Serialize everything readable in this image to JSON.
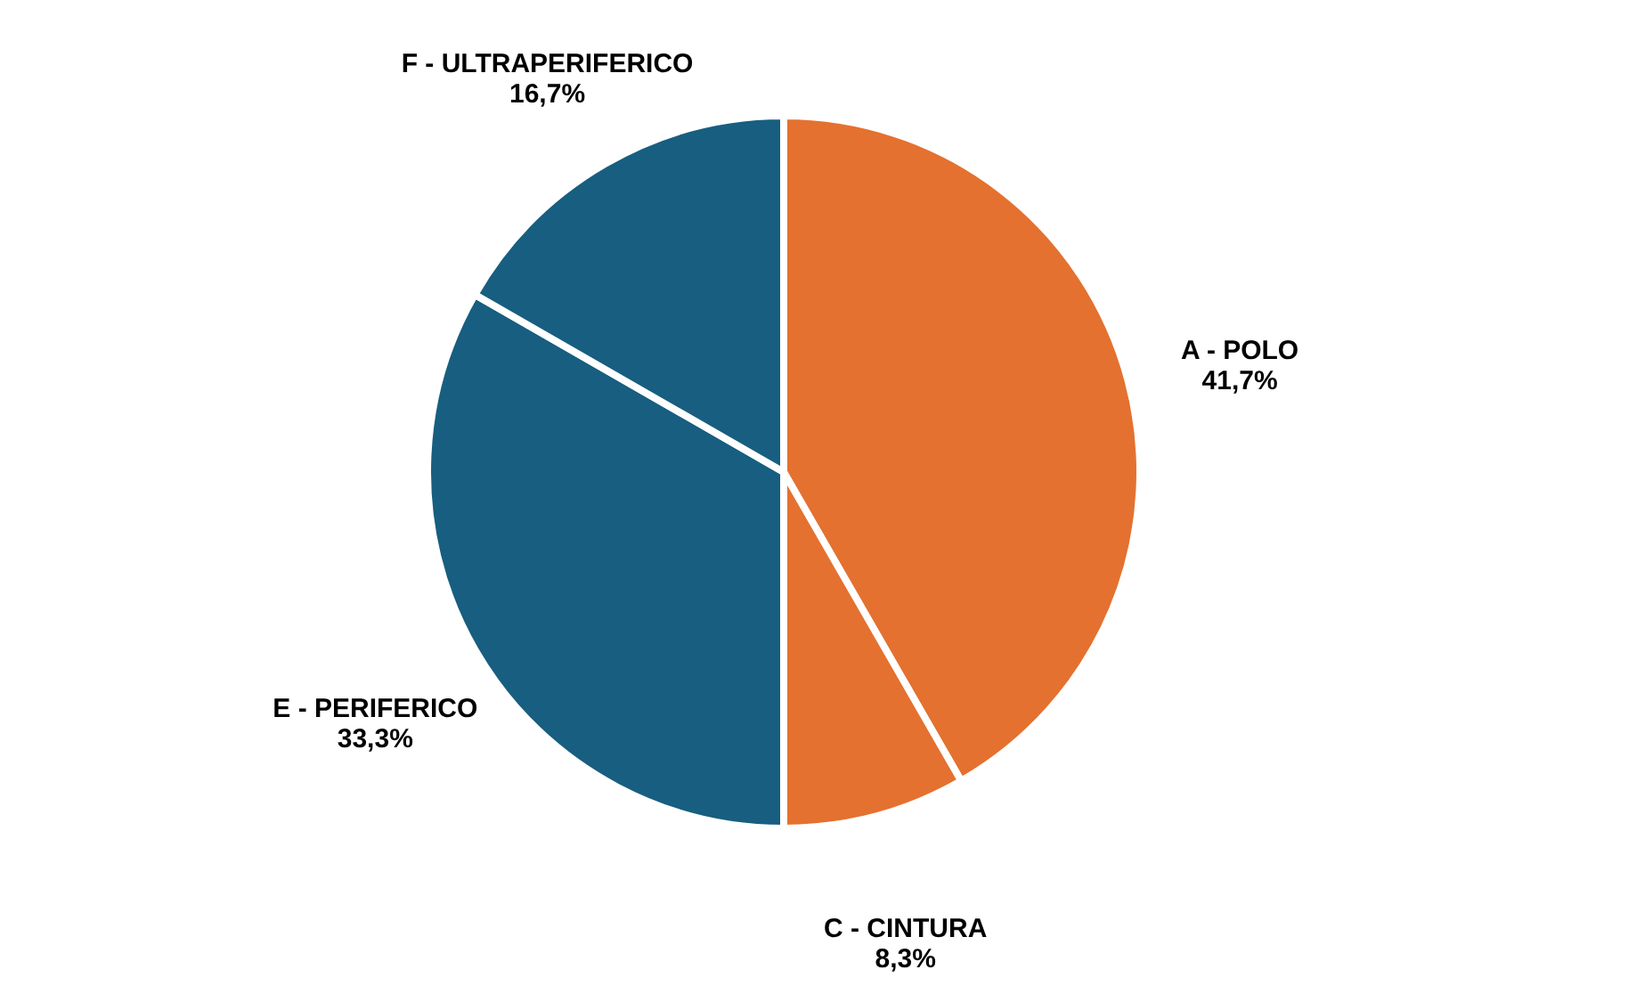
{
  "chart_data": {
    "type": "pie",
    "categories": [
      "A - POLO",
      "C - CINTURA",
      "E - PERIFERICO",
      "F - ULTRAPERIFERICO"
    ],
    "values": [
      41.7,
      8.3,
      33.3,
      16.7
    ],
    "colors": [
      "#e4712f",
      "#e4712f",
      "#175e80",
      "#175e80"
    ],
    "value_labels": [
      "41,7%",
      "8,3%",
      "33,3%",
      "16,7%"
    ],
    "legend": false
  }
}
